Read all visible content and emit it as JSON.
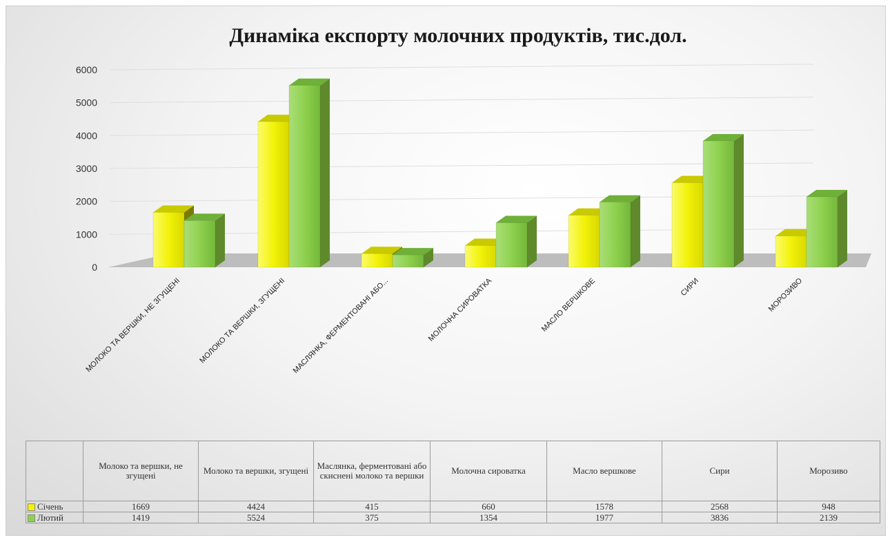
{
  "chart_data": {
    "type": "bar",
    "title": "Динаміка експорту молочних продуктів, тис.дол.",
    "ylim": [
      0,
      6000
    ],
    "yticks": [
      0,
      1000,
      2000,
      3000,
      4000,
      5000,
      6000
    ],
    "grid": true,
    "categories": [
      "МОЛОКО ТА ВЕРШКИ, НЕ ЗГУЩЕНІ",
      "МОЛОКО ТА ВЕРШКИ,  ЗГУЩЕНІ",
      "МАСЛЯНКА, ФЕРМЕНТОВАНІ АБО...",
      "МОЛОЧНА СИРОВАТКА",
      "МАСЛО ВЕРШКОВЕ",
      "СИРИ",
      "МОРОЗИВО"
    ],
    "table_headers": [
      "Молоко та вершки, не згущені",
      "Молоко та вершки, згущені",
      "Маслянка, ферментовані або скиснені молоко та вершки",
      "Молочна сироватка",
      "Масло вершкове",
      "Сири",
      "Морозиво"
    ],
    "series": [
      {
        "name": "Січень",
        "color": "#f2f20a",
        "values": [
          1669,
          4424,
          415,
          660,
          1578,
          2568,
          948
        ]
      },
      {
        "name": "Лютий",
        "color": "#8fd14f",
        "values": [
          1419,
          5524,
          375,
          1354,
          1977,
          3836,
          2139
        ]
      }
    ],
    "legend": "table"
  }
}
